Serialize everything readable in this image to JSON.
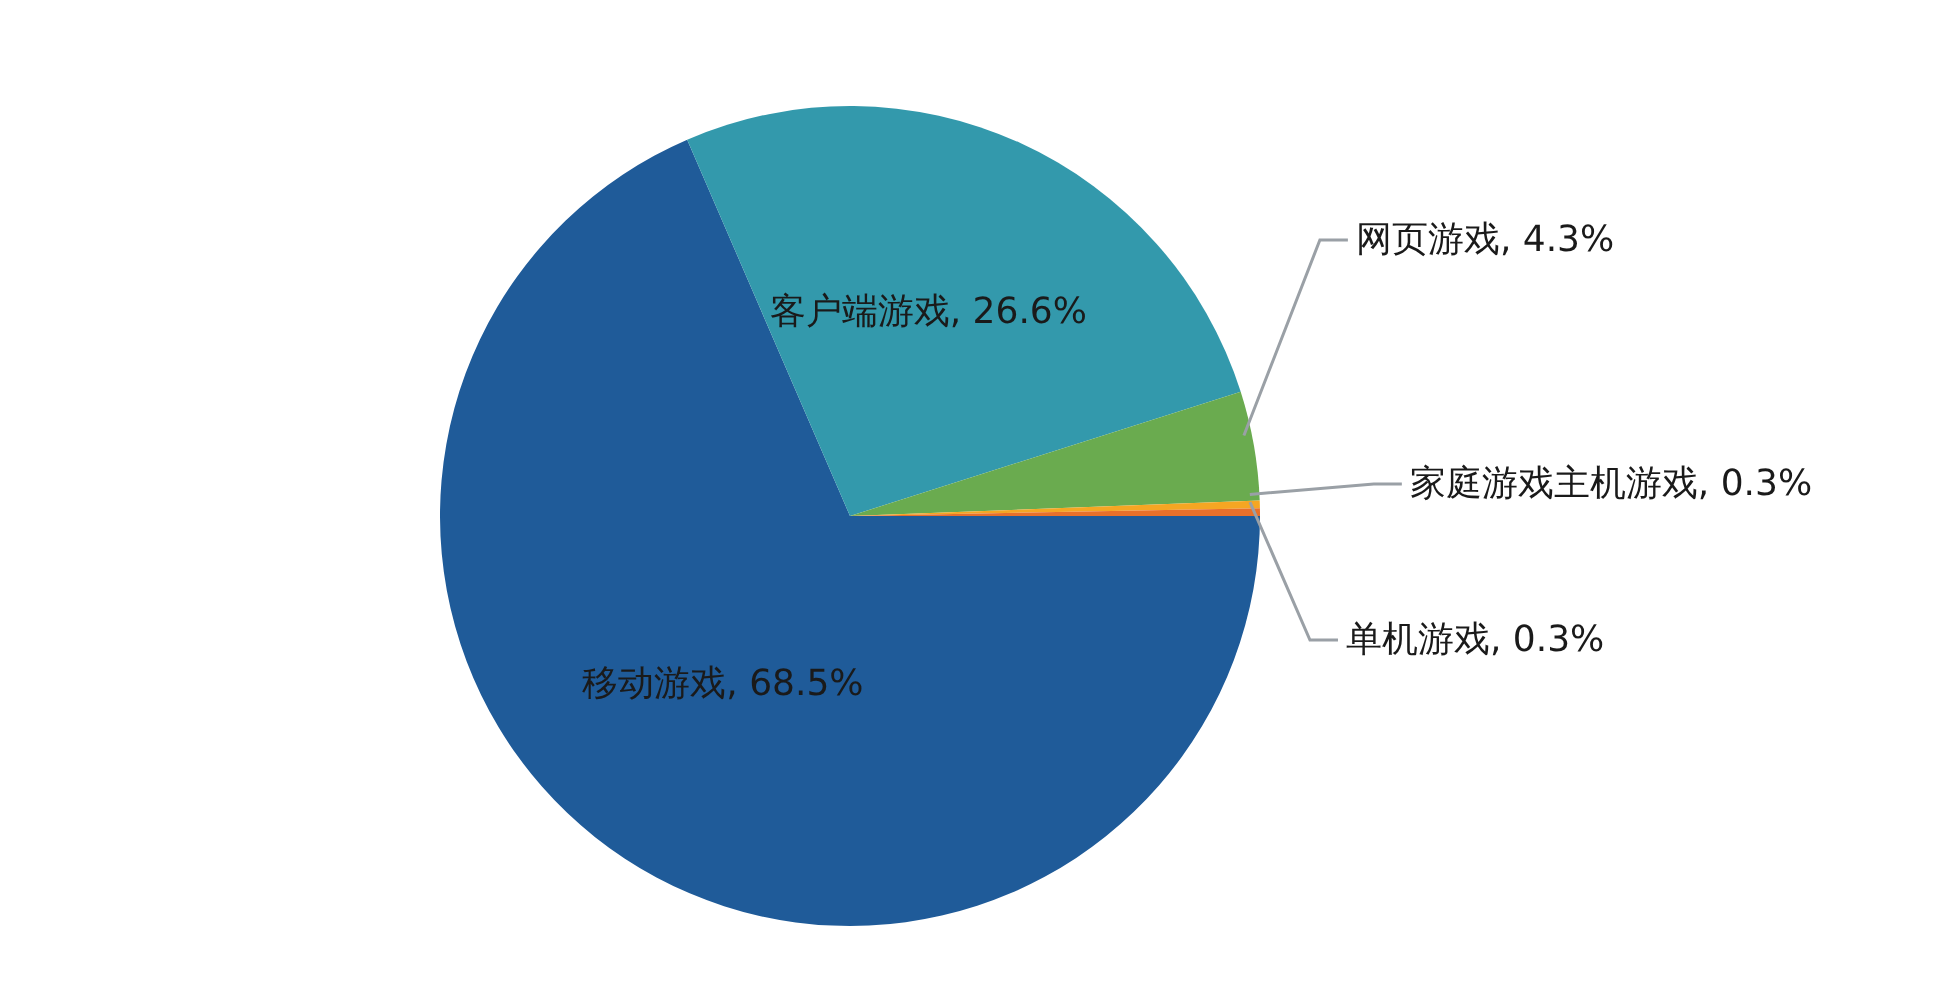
{
  "chart_data": {
    "type": "pie",
    "categories": [
      "移动游戏",
      "客户端游戏",
      "网页游戏",
      "家庭游戏主机游戏",
      "单机游戏"
    ],
    "values": [
      68.5,
      26.6,
      4.3,
      0.3,
      0.3
    ],
    "value_labels": [
      "68.5%",
      "26.6%",
      "4.3%",
      "0.3%",
      "0.3%"
    ],
    "colors": [
      "#1f5b99",
      "#3399ac",
      "#6aab4f",
      "#f5a623",
      "#e8702a"
    ],
    "legend": false
  }
}
